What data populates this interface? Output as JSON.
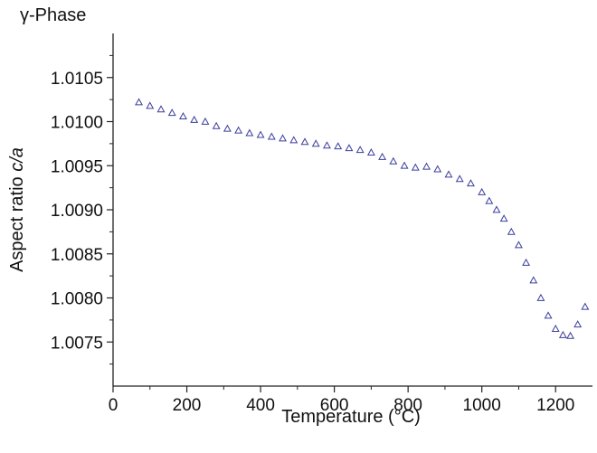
{
  "chart_data": {
    "type": "scatter",
    "title": "γ-Phase",
    "xlabel": "Temperature (°C)",
    "ylabel_prefix": "Aspect ratio ",
    "ylabel_var": "c/a",
    "xlim": [
      0,
      1300
    ],
    "ylim": [
      1.007,
      1.011
    ],
    "xticks": [
      0,
      200,
      400,
      600,
      800,
      1000,
      1200
    ],
    "yticks": [
      "1.0075",
      "1.0080",
      "1.0085",
      "1.0090",
      "1.0095",
      "1.0100",
      "1.0105"
    ],
    "grid": false,
    "marker": "triangle-open",
    "marker_color": "#3a3f9a",
    "series": [
      {
        "x": [
          70,
          100,
          130,
          160,
          190,
          220,
          250,
          280,
          310,
          340,
          370,
          400,
          430,
          460,
          490,
          520,
          550,
          580,
          610,
          640,
          670,
          700,
          730,
          760,
          790,
          820,
          850,
          880,
          910,
          940,
          970,
          1000,
          1020,
          1040,
          1060,
          1080,
          1100,
          1120,
          1140,
          1160,
          1180,
          1200,
          1220,
          1240,
          1260,
          1280
        ],
        "y": [
          1.01022,
          1.01018,
          1.01014,
          1.0101,
          1.01006,
          1.01002,
          1.01,
          1.00995,
          1.00992,
          1.0099,
          1.00987,
          1.00985,
          1.00983,
          1.00981,
          1.00979,
          1.00977,
          1.00975,
          1.00973,
          1.00972,
          1.0097,
          1.00968,
          1.00965,
          1.0096,
          1.00955,
          1.0095,
          1.00948,
          1.00949,
          1.00946,
          1.0094,
          1.00935,
          1.0093,
          1.0092,
          1.0091,
          1.009,
          1.0089,
          1.00875,
          1.0086,
          1.0084,
          1.0082,
          1.008,
          1.0078,
          1.00765,
          1.00758,
          1.00757,
          1.0077,
          1.0079
        ]
      }
    ]
  }
}
